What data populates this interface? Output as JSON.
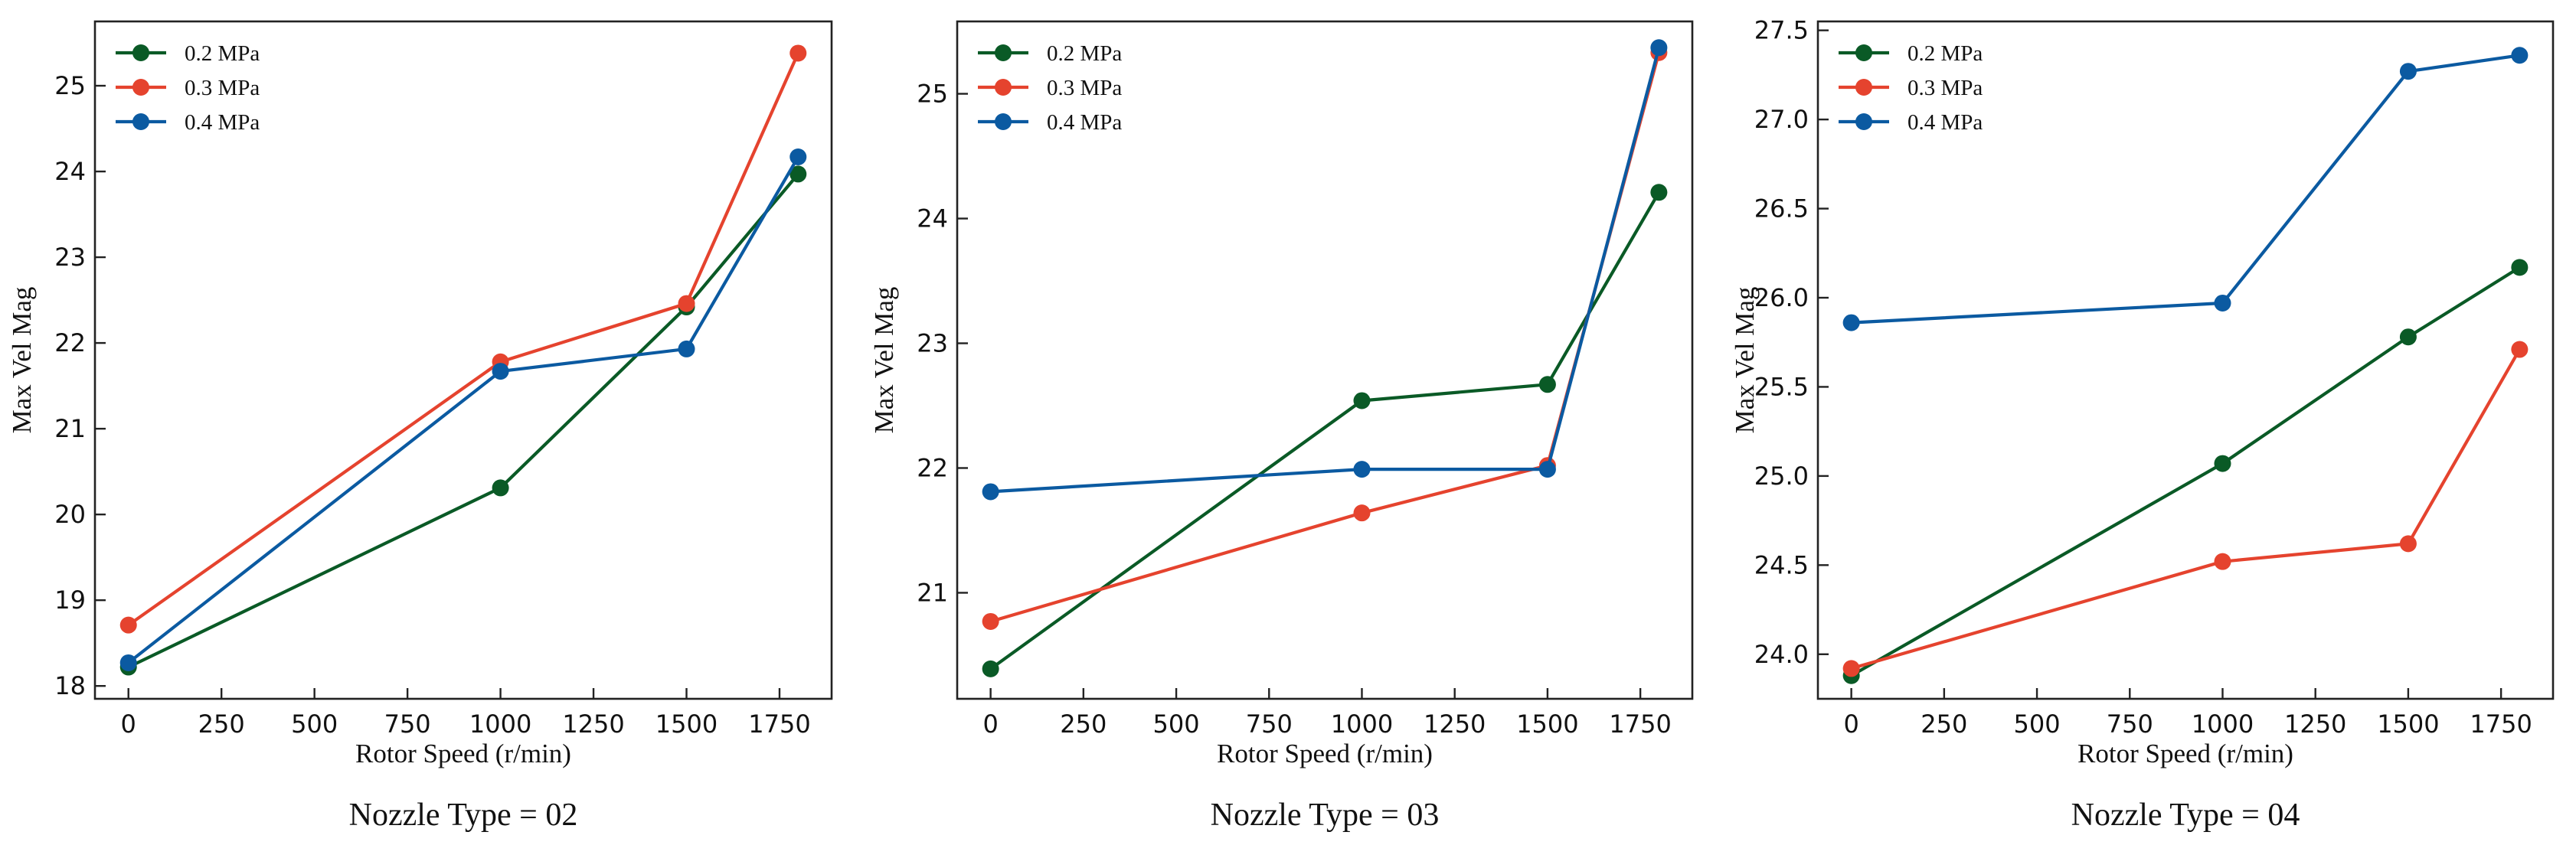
{
  "colors": {
    "series_0.2": "#0a5a26",
    "series_0.3": "#e5432e",
    "series_0.4": "#0b5aa1"
  },
  "chart_data": [
    {
      "type": "line",
      "caption": "Nozzle Type = 02",
      "xlabel": "Rotor Speed (r/min)",
      "ylabel": "Max Vel Mag",
      "x": [
        0,
        1000,
        1500,
        1800
      ],
      "xlim": [
        -90,
        1890
      ],
      "ylim": [
        17.85,
        25.75
      ],
      "xticks": [
        0,
        250,
        500,
        750,
        1000,
        1250,
        1500,
        1750
      ],
      "yticks": [
        18,
        19,
        20,
        21,
        22,
        23,
        24,
        25
      ],
      "ytick_decimals": 0,
      "legend_position": "top-left",
      "series": [
        {
          "name": "0.2 MPa",
          "color": "#0a5a26",
          "values": [
            18.22,
            20.31,
            22.42,
            23.97
          ]
        },
        {
          "name": "0.3 MPa",
          "color": "#e5432e",
          "values": [
            18.71,
            21.78,
            22.46,
            25.38
          ]
        },
        {
          "name": "0.4 MPa",
          "color": "#0b5aa1",
          "values": [
            18.27,
            21.67,
            21.93,
            24.17
          ]
        }
      ]
    },
    {
      "type": "line",
      "caption": "Nozzle Type = 03",
      "xlabel": "Rotor Speed (r/min)",
      "ylabel": "Max Vel Mag",
      "x": [
        0,
        1000,
        1500,
        1800
      ],
      "xlim": [
        -90,
        1890
      ],
      "ylim": [
        20.15,
        25.58
      ],
      "xticks": [
        0,
        250,
        500,
        750,
        1000,
        1250,
        1500,
        1750
      ],
      "yticks": [
        21,
        22,
        23,
        24,
        25
      ],
      "ytick_decimals": 0,
      "legend_position": "top-left",
      "series": [
        {
          "name": "0.2 MPa",
          "color": "#0a5a26",
          "values": [
            20.39,
            22.54,
            22.67,
            24.21
          ]
        },
        {
          "name": "0.3 MPa",
          "color": "#e5432e",
          "values": [
            20.77,
            21.64,
            22.02,
            25.33
          ]
        },
        {
          "name": "0.4 MPa",
          "color": "#0b5aa1",
          "values": [
            21.81,
            21.99,
            21.99,
            25.37
          ]
        }
      ]
    },
    {
      "type": "line",
      "caption": "Nozzle Type = 04",
      "xlabel": "Rotor Speed (r/min)",
      "ylabel": "Max Vel Mag",
      "x": [
        0,
        1000,
        1500,
        1800
      ],
      "xlim": [
        -90,
        1890
      ],
      "ylim": [
        23.75,
        27.55
      ],
      "xticks": [
        0,
        250,
        500,
        750,
        1000,
        1250,
        1500,
        1750
      ],
      "yticks": [
        24.0,
        24.5,
        25.0,
        25.5,
        26.0,
        26.5,
        27.0,
        27.5
      ],
      "ytick_decimals": 1,
      "legend_position": "top-left",
      "series": [
        {
          "name": "0.2 MPa",
          "color": "#0a5a26",
          "values": [
            23.88,
            25.07,
            25.78,
            26.17
          ]
        },
        {
          "name": "0.3 MPa",
          "color": "#e5432e",
          "values": [
            23.92,
            24.52,
            24.62,
            25.71
          ]
        },
        {
          "name": "0.4 MPa",
          "color": "#0b5aa1",
          "values": [
            25.86,
            25.97,
            27.27,
            27.36
          ]
        }
      ]
    }
  ]
}
